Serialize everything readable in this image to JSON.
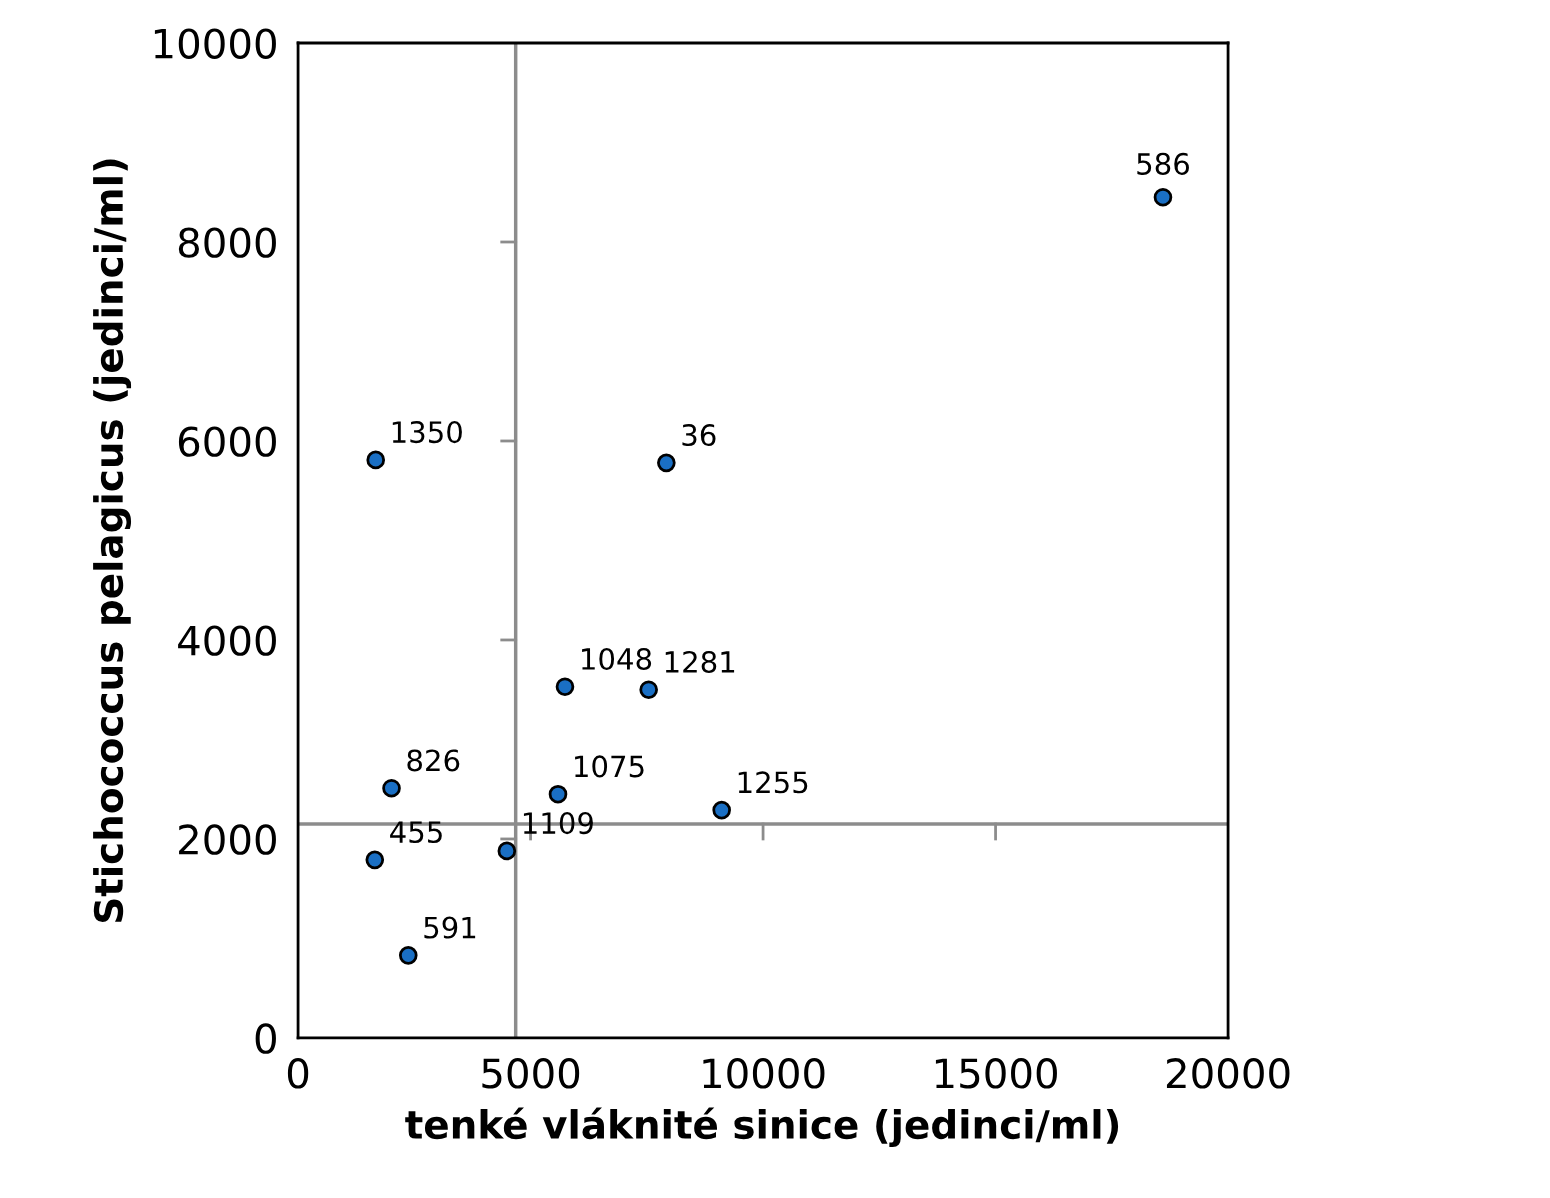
{
  "chart_data": {
    "type": "scatter",
    "xlabel": "tenké vláknité sinice (jedinci/ml)",
    "ylabel": "Stichococcus pelagicus (jedinci/ml)",
    "x": [
      18600,
      1670,
      7920,
      5740,
      7540,
      2010,
      5590,
      9110,
      1650,
      4490,
      2370
    ],
    "series": [
      {
        "color": "#1a6fc4",
        "values": [
          8450,
          5810,
          5780,
          3530,
          3500,
          2510,
          2450,
          2290,
          1790,
          1880,
          830
        ]
      }
    ],
    "annotations": [
      {
        "text": "586",
        "x": 18600,
        "y": 8450
      },
      {
        "text": "1350",
        "x": 1670,
        "y": 5810
      },
      {
        "text": "36",
        "x": 7920,
        "y": 5780
      },
      {
        "text": "1048",
        "x": 5740,
        "y": 3530
      },
      {
        "text": "1281",
        "x": 7540,
        "y": 3500
      },
      {
        "text": "826",
        "x": 2010,
        "y": 2510
      },
      {
        "text": "1075",
        "x": 5590,
        "y": 2450
      },
      {
        "text": "1255",
        "x": 9110,
        "y": 2290
      },
      {
        "text": "455",
        "x": 1650,
        "y": 1790
      },
      {
        "text": "1109",
        "x": 4490,
        "y": 1880
      },
      {
        "text": "591",
        "x": 2370,
        "y": 830
      }
    ],
    "ref_lines": [
      {
        "axis": "x",
        "value": 4680,
        "color": "#8c8c8c"
      },
      {
        "axis": "y",
        "value": 2150,
        "color": "#8c8c8c"
      }
    ],
    "xlim": [
      0,
      20000
    ],
    "xticks": [
      0,
      5000,
      10000,
      15000,
      20000
    ],
    "ylim": [
      0,
      10000
    ],
    "yticks": [
      0,
      2000,
      4000,
      6000,
      8000,
      10000
    ],
    "marker": "circle",
    "grid": false,
    "legend": false
  }
}
